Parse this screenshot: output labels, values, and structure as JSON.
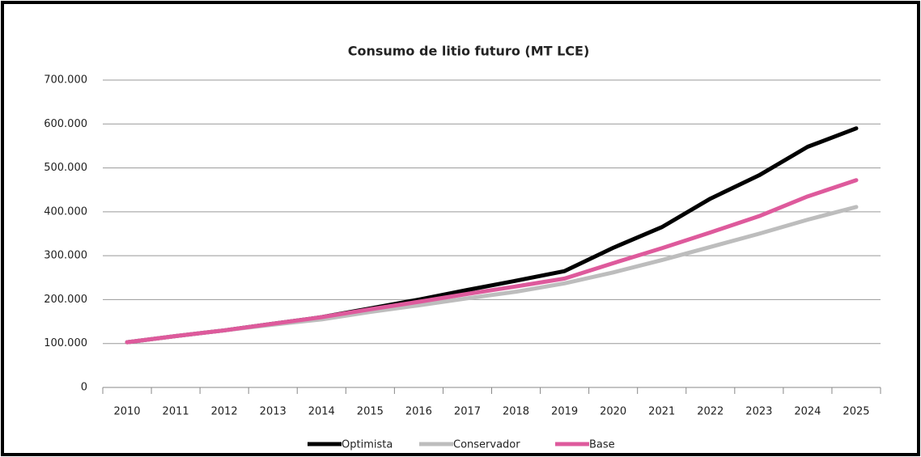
{
  "chart_data": {
    "type": "line",
    "title": "Consumo de litio futuro (MT LCE)",
    "categories": [
      "2010",
      "2011",
      "2012",
      "2013",
      "2014",
      "2015",
      "2016",
      "2017",
      "2018",
      "2019",
      "2020",
      "2021",
      "2022",
      "2023",
      "2024",
      "2025"
    ],
    "series": [
      {
        "name": "Optimista",
        "color": "#000000",
        "values": [
          103000,
          117000,
          130000,
          145000,
          160000,
          180000,
          200000,
          222000,
          243000,
          265000,
          318000,
          365000,
          430000,
          483000,
          548000,
          590000
        ]
      },
      {
        "name": "Conservador",
        "color": "#bdbdbd",
        "values": [
          103000,
          117000,
          130000,
          143000,
          155000,
          172000,
          187000,
          203000,
          218000,
          237000,
          262000,
          290000,
          320000,
          350000,
          382000,
          411000
        ]
      },
      {
        "name": "Base",
        "color": "#de5a9c",
        "values": [
          103000,
          117000,
          130000,
          145000,
          160000,
          178000,
          195000,
          213000,
          230000,
          248000,
          283000,
          317000,
          353000,
          390000,
          435000,
          472000
        ]
      }
    ],
    "ylim": [
      0,
      700000
    ],
    "yticks": [
      0,
      {
        "value": 100000,
        "label": "100.000"
      },
      {
        "value": 200000,
        "label": "200.000"
      },
      {
        "value": 300000,
        "label": "300.000"
      },
      {
        "value": 400000,
        "label": "400.000"
      },
      {
        "value": 500000,
        "label": "500.000"
      },
      {
        "value": 600000,
        "label": "600.000"
      },
      {
        "value": 700000,
        "label": "700.000"
      }
    ],
    "grid": true,
    "legend": "bottom"
  }
}
